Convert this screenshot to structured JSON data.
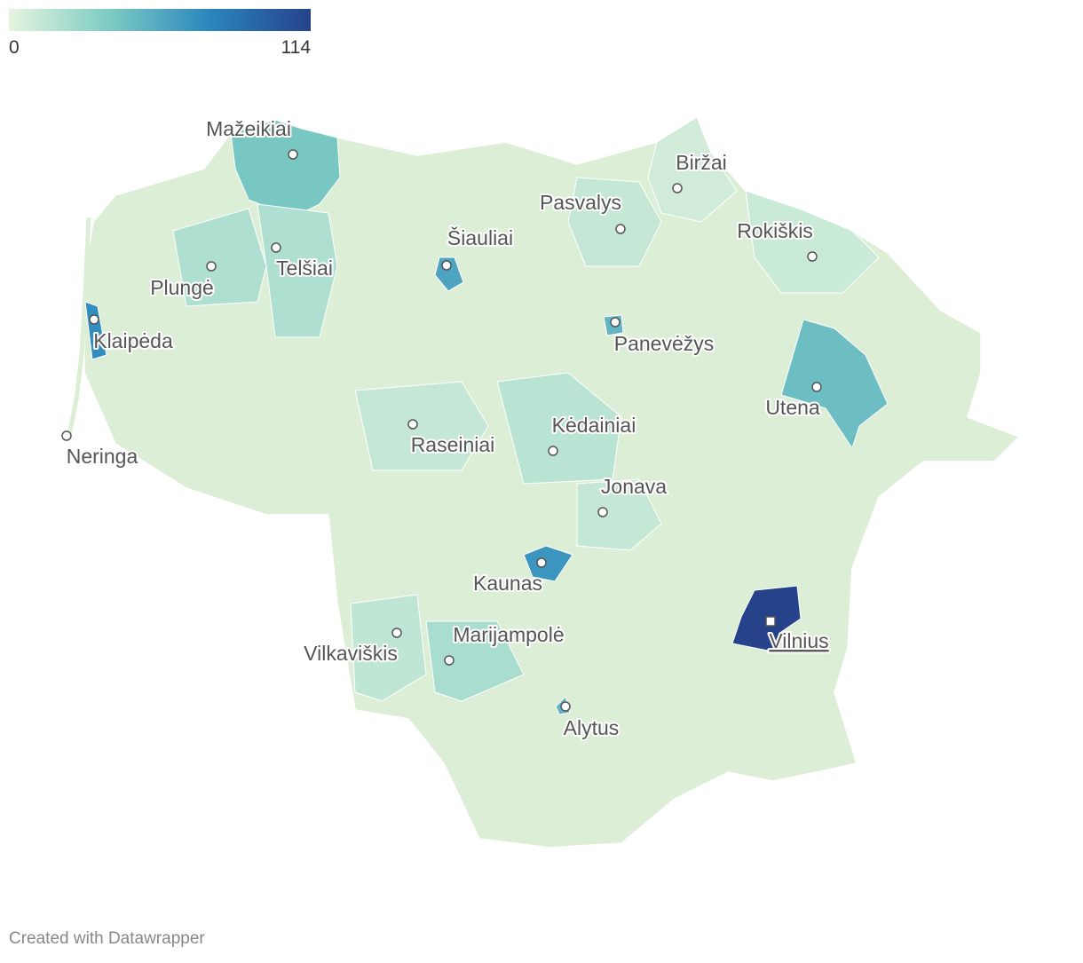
{
  "legend": {
    "min": 0,
    "max": 114,
    "colorscale": [
      "#e6f5df",
      "#7ccbc3",
      "#2a86bd",
      "#26428b"
    ]
  },
  "cities": [
    {
      "name": "Mažeikiai",
      "value": 40
    },
    {
      "name": "Biržai",
      "value": 8
    },
    {
      "name": "Pasvalys",
      "value": 12
    },
    {
      "name": "Rokiškis",
      "value": 10
    },
    {
      "name": "Šiauliai",
      "value": 60
    },
    {
      "name": "Telšiai",
      "value": 20
    },
    {
      "name": "Plungė",
      "value": 20
    },
    {
      "name": "Klaipėda",
      "value": 72
    },
    {
      "name": "Panevėžys",
      "value": 50
    },
    {
      "name": "Utena",
      "value": 45
    },
    {
      "name": "Neringa",
      "value": 5
    },
    {
      "name": "Raseiniai",
      "value": 12
    },
    {
      "name": "Kėdainiai",
      "value": 16
    },
    {
      "name": "Jonava",
      "value": 12
    },
    {
      "name": "Kaunas",
      "value": 68
    },
    {
      "name": "Vilnius",
      "value": 114
    },
    {
      "name": "Vilkaviškis",
      "value": 14
    },
    {
      "name": "Marijampolė",
      "value": 22
    },
    {
      "name": "Alytus",
      "value": 50
    }
  ],
  "footer": "Created with Datawrapper"
}
